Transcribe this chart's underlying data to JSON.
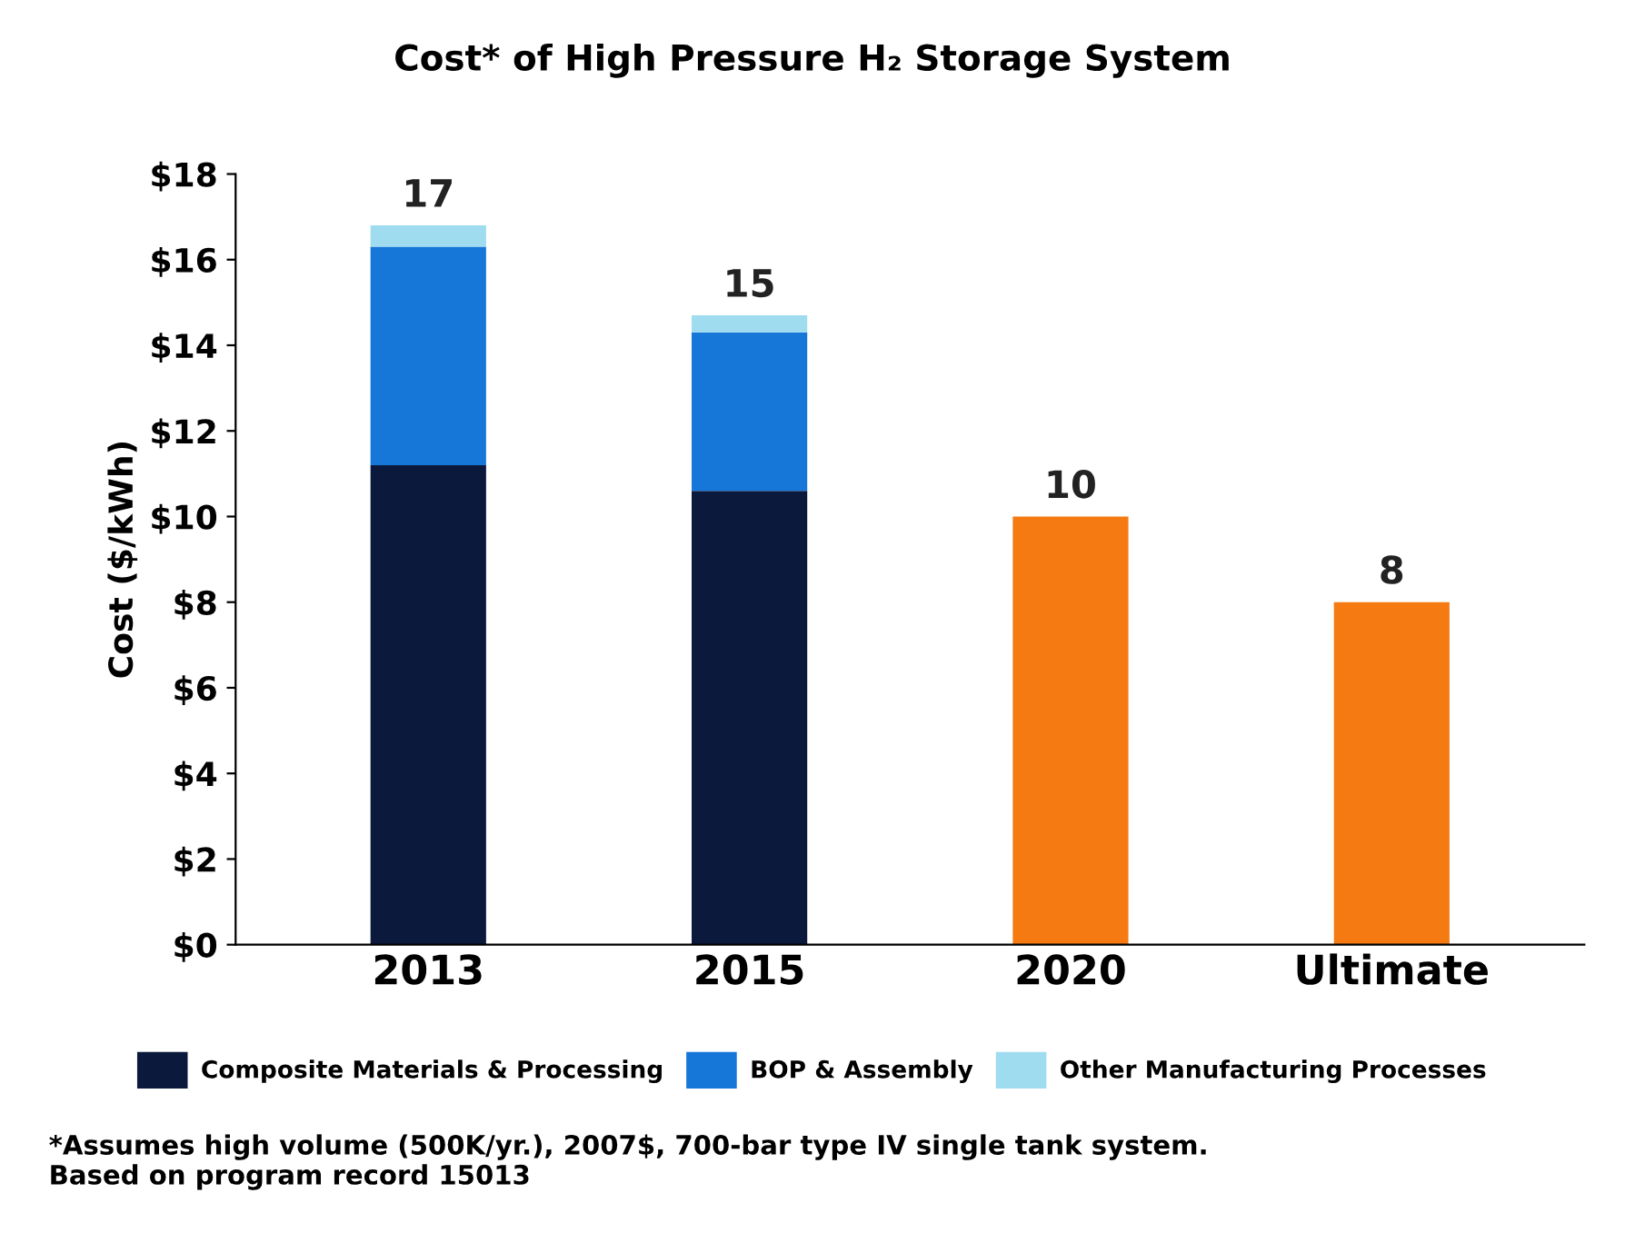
{
  "chart_data": {
    "type": "bar",
    "title": "Cost* of High Pressure H₂ Storage System",
    "ylabel": "Cost ($/kWh)",
    "categories": [
      "2013",
      "2015",
      "2020",
      "Ultimate"
    ],
    "stacked": true,
    "series": [
      {
        "name": "Composite Materials & Processing",
        "color": "#0b1a3c",
        "values": [
          11.2,
          10.6,
          null,
          null
        ]
      },
      {
        "name": "BOP & Assembly",
        "color": "#1677d9",
        "values": [
          5.1,
          3.7,
          null,
          null
        ]
      },
      {
        "name": "Other Manufacturing Processes",
        "color": "#9fdcef",
        "values": [
          0.5,
          0.4,
          null,
          null
        ]
      },
      {
        "color": "#f57a12",
        "values": [
          null,
          null,
          10,
          8
        ]
      }
    ],
    "totals": [
      "17",
      "15",
      "10",
      "8"
    ],
    "ylim": [
      0,
      18
    ],
    "yticks": [
      {
        "value": 0,
        "label": "$0"
      },
      {
        "value": 2,
        "label": "$2"
      },
      {
        "value": 4,
        "label": "$4"
      },
      {
        "value": 6,
        "label": "$6"
      },
      {
        "value": 8,
        "label": "$8"
      },
      {
        "value": 10,
        "label": "$10"
      },
      {
        "value": 12,
        "label": "$12"
      },
      {
        "value": 14,
        "label": "$14"
      },
      {
        "value": 16,
        "label": "$16"
      },
      {
        "value": 18,
        "label": "$18"
      }
    ],
    "grid": false,
    "legend": "bottom",
    "annotations": [
      "*Assumes high volume (500K/yr.), 2007$, 700-bar type IV single tank system.\nBased on program record 15013"
    ]
  }
}
